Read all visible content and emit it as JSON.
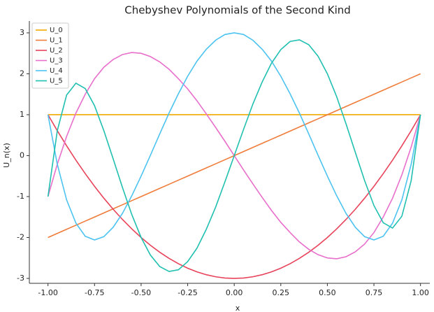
{
  "chart_data": {
    "type": "line",
    "title": "Chebyshev Polynomials of the Second Kind",
    "xlabel": "x",
    "ylabel": "U_n(x)",
    "x": [
      -1,
      -0.95,
      -0.9,
      -0.85,
      -0.8,
      -0.75,
      -0.7,
      -0.65,
      -0.6,
      -0.55,
      -0.5,
      -0.45,
      -0.4,
      -0.35,
      -0.3,
      -0.25,
      -0.2,
      -0.15,
      -0.1,
      -0.05,
      0,
      0.05,
      0.1,
      0.15,
      0.2,
      0.25,
      0.3,
      0.35,
      0.4,
      0.45,
      0.5,
      0.55,
      0.6,
      0.65,
      0.7,
      0.75,
      0.8,
      0.85,
      0.9,
      0.95,
      1
    ],
    "series": [
      {
        "name": "U_0",
        "color": "#f2a900",
        "values": [
          1,
          1,
          1,
          1,
          1,
          1,
          1,
          1,
          1,
          1,
          1,
          1,
          1,
          1,
          1,
          1,
          1,
          1,
          1,
          1,
          1,
          1,
          1,
          1,
          1,
          1,
          1,
          1,
          1,
          1,
          1,
          1,
          1,
          1,
          1,
          1,
          1,
          1,
          1,
          1,
          1
        ]
      },
      {
        "name": "U_1",
        "color": "#f07c3a",
        "values": [
          -2,
          -1.9,
          -1.8,
          -1.7,
          -1.6,
          -1.5,
          -1.4,
          -1.3,
          -1.2,
          -1.1,
          -1,
          -0.9,
          -0.8,
          -0.7,
          -0.6,
          -0.5,
          -0.4,
          -0.3,
          -0.2,
          -0.1,
          0,
          0.1,
          0.2,
          0.3,
          0.4,
          0.5,
          0.6,
          0.7,
          0.8,
          0.9,
          1,
          1.1,
          1.2,
          1.3,
          1.4,
          1.5,
          1.6,
          1.7,
          1.8,
          1.9,
          2
        ]
      },
      {
        "name": "U_2",
        "color": "#e8435a",
        "values": [
          1,
          0.61,
          0.24,
          -0.11,
          -0.44,
          -0.75,
          -1.04,
          -1.31,
          -1.56,
          -1.79,
          -2,
          -2.19,
          -2.36,
          -2.51,
          -2.64,
          -2.75,
          -2.84,
          -2.91,
          -2.96,
          -2.99,
          -3,
          -2.99,
          -2.96,
          -2.91,
          -2.84,
          -2.75,
          -2.64,
          -2.51,
          -2.36,
          -2.19,
          -2,
          -1.79,
          -1.56,
          -1.31,
          -1.04,
          -0.75,
          -0.44,
          -0.11,
          0.24,
          0.61,
          1
        ]
      },
      {
        "name": "U_3",
        "color": "#e86fcb",
        "values": [
          -1,
          -0.21,
          0.47,
          1.04,
          1.5,
          1.88,
          2.16,
          2.35,
          2.47,
          2.52,
          2.5,
          2.42,
          2.29,
          2.11,
          1.88,
          1.63,
          1.34,
          1.02,
          0.69,
          0.35,
          0,
          -0.35,
          -0.69,
          -1.02,
          -1.34,
          -1.63,
          -1.88,
          -2.11,
          -2.29,
          -2.42,
          -2.5,
          -2.52,
          -2.47,
          -2.35,
          -2.16,
          -1.88,
          -1.5,
          -1.04,
          -0.47,
          0.21,
          1
        ]
      },
      {
        "name": "U_4",
        "color": "#4cc3f0",
        "values": [
          1,
          -0.21,
          -1.08,
          -1.65,
          -1.97,
          -2.06,
          -1.98,
          -1.75,
          -1.41,
          -0.98,
          -0.5,
          0.01,
          0.53,
          1.04,
          1.51,
          1.94,
          2.31,
          2.6,
          2.82,
          2.96,
          3,
          2.96,
          2.82,
          2.6,
          2.31,
          1.94,
          1.51,
          1.04,
          0.53,
          0.01,
          -0.5,
          -0.98,
          -1.41,
          -1.75,
          -1.98,
          -2.06,
          -1.97,
          -1.65,
          -1.08,
          -0.21,
          1
        ]
      },
      {
        "name": "U_5",
        "color": "#20c0b0",
        "values": [
          -1,
          0.61,
          1.48,
          1.77,
          1.64,
          1.22,
          0.61,
          -0.08,
          -0.78,
          -1.44,
          -2,
          -2.43,
          -2.71,
          -2.83,
          -2.79,
          -2.59,
          -2.26,
          -1.8,
          -1.26,
          -0.64,
          0,
          0.64,
          1.26,
          1.8,
          2.26,
          2.59,
          2.79,
          2.83,
          2.71,
          2.43,
          2,
          1.44,
          0.78,
          0.08,
          -0.61,
          -1.22,
          -1.64,
          -1.77,
          -1.48,
          -0.61,
          1
        ]
      }
    ],
    "xlim": [
      -1.1,
      1.05
    ],
    "ylim": [
      -3.12,
      3.29
    ],
    "xticks": [
      {
        "value": -1,
        "label": "-1.00"
      },
      {
        "value": -0.75,
        "label": "-0.75"
      },
      {
        "value": -0.5,
        "label": "-0.50"
      },
      {
        "value": -0.25,
        "label": "-0.25"
      },
      {
        "value": 0,
        "label": "0.00"
      },
      {
        "value": 0.25,
        "label": "0.25"
      },
      {
        "value": 0.5,
        "label": "0.50"
      },
      {
        "value": 0.75,
        "label": "0.75"
      },
      {
        "value": 1,
        "label": "1.00"
      }
    ],
    "yticks": [
      -3,
      -2,
      -1,
      0,
      1,
      2,
      3
    ],
    "grid": false,
    "legend": "upper left"
  }
}
